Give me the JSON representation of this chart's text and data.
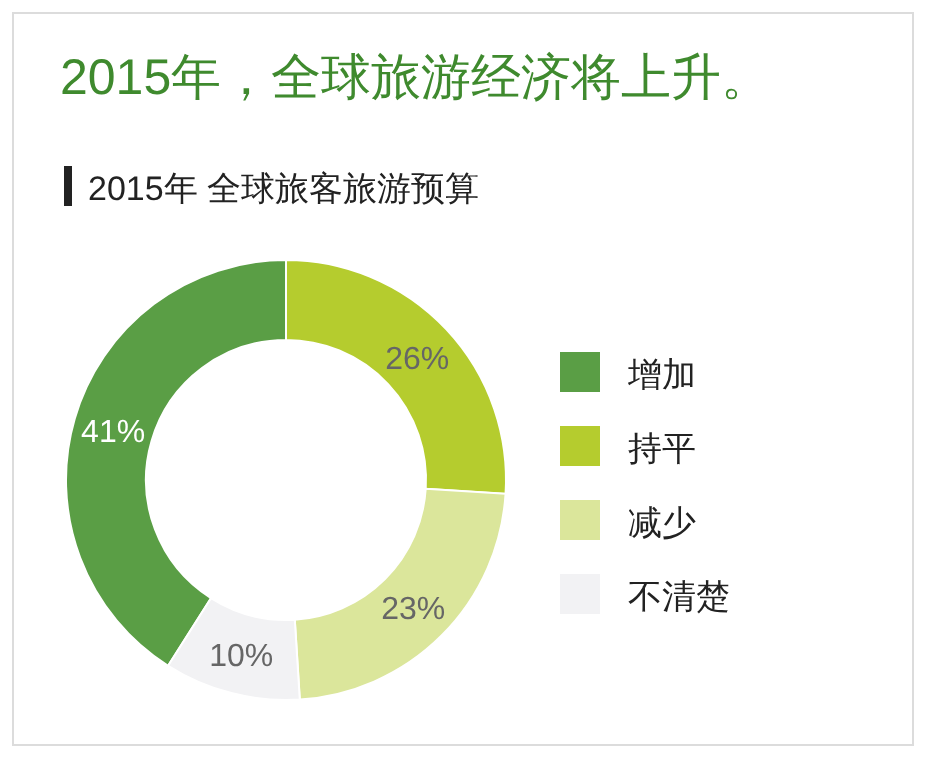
{
  "chart_data": {
    "type": "donut",
    "title": "2015年，全球旅游经济将上升。",
    "subtitle": "2015年 全球旅客旅游预算",
    "categories": [
      "增加",
      "持平",
      "减少",
      "不清楚"
    ],
    "values": [
      41,
      26,
      23,
      10
    ],
    "colors": [
      "#5a9e45",
      "#b5cc2e",
      "#dbe69b",
      "#f2f2f4"
    ],
    "value_labels": [
      "41%",
      "26%",
      "23%",
      "10%"
    ],
    "legend": "right"
  }
}
